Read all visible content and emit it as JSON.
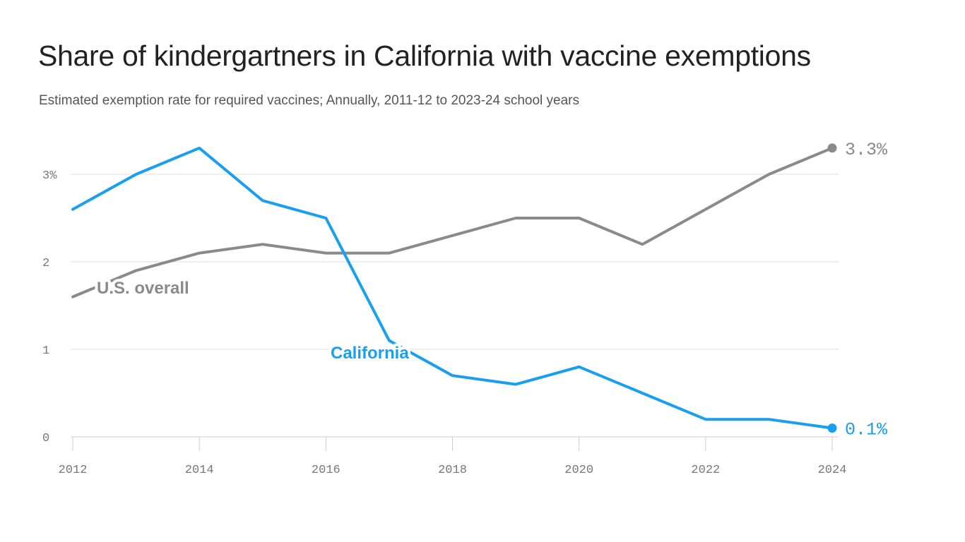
{
  "title": "Share of kindergartners in California with vaccine exemptions",
  "subtitle": "Estimated exemption rate for required vaccines; Annually, 2011-12 to 2023-24 school years",
  "colors": {
    "california": "#1a9ff0",
    "us": "#8a8a8a",
    "grid": "#dddddd",
    "ticks": "#777777"
  },
  "chart_data": {
    "type": "line",
    "x": [
      2012,
      2013,
      2014,
      2015,
      2016,
      2017,
      2018,
      2019,
      2020,
      2021,
      2022,
      2023,
      2024
    ],
    "series": [
      {
        "name": "U.S. overall",
        "key": "us",
        "values": [
          1.6,
          1.9,
          2.1,
          2.2,
          2.1,
          2.1,
          2.3,
          2.5,
          2.5,
          2.2,
          2.6,
          3.0,
          3.3
        ],
        "end_label": "3.3%"
      },
      {
        "name": "California",
        "key": "california",
        "values": [
          2.6,
          3.0,
          3.3,
          2.7,
          2.5,
          1.1,
          0.7,
          0.6,
          0.8,
          0.5,
          0.2,
          0.2,
          0.1
        ],
        "end_label": "0.1%"
      }
    ],
    "y_ticks": [
      {
        "value": 0,
        "label": "0"
      },
      {
        "value": 1,
        "label": "1"
      },
      {
        "value": 2,
        "label": "2"
      },
      {
        "value": 3,
        "label": "3%"
      }
    ],
    "x_ticks": [
      {
        "value": 2012,
        "label": "2012"
      },
      {
        "value": 2014,
        "label": "2014"
      },
      {
        "value": 2016,
        "label": "2016"
      },
      {
        "value": 2018,
        "label": "2018"
      },
      {
        "value": 2020,
        "label": "2020"
      },
      {
        "value": 2022,
        "label": "2022"
      },
      {
        "value": 2024,
        "label": "2024"
      }
    ],
    "xlim": [
      2012,
      2024
    ],
    "ylim": [
      0,
      3.3
    ],
    "grid": true,
    "legend": "inline labels"
  }
}
